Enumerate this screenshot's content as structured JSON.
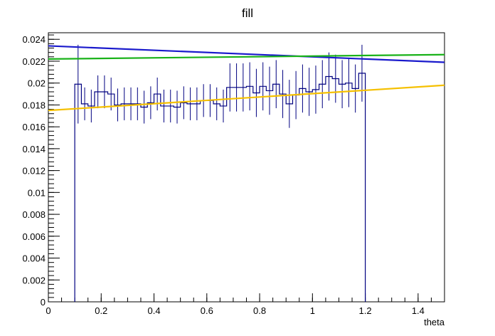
{
  "chart_data": {
    "type": "line",
    "title": "fill",
    "xlabel": "theta",
    "ylabel": "",
    "xlim": [
      0,
      1.5
    ],
    "ylim": [
      0,
      0.0246
    ],
    "x_ticks": [
      0,
      0.2,
      0.4,
      0.6,
      0.8,
      1,
      1.2,
      1.4
    ],
    "x_tick_labels": [
      "0",
      "0.2",
      "0.4",
      "0.6",
      "0.8",
      "1",
      "1.2",
      "1.4"
    ],
    "y_ticks": [
      0,
      0.002,
      0.004,
      0.006,
      0.008,
      0.01,
      0.012,
      0.014,
      0.016,
      0.018,
      0.02,
      0.022,
      0.024
    ],
    "y_tick_labels": [
      "0",
      "0.002",
      "0.004",
      "0.006",
      "0.008",
      "0.01",
      "0.012",
      "0.014",
      "0.016",
      "0.018",
      "0.02",
      "0.022",
      "0.024"
    ],
    "histogram": {
      "bin_width": 0.025,
      "first_edge": 0.1,
      "values": [
        0.0199,
        0.0181,
        0.0179,
        0.0192,
        0.0192,
        0.019,
        0.018,
        0.0181,
        0.0181,
        0.0181,
        0.0178,
        0.0182,
        0.019,
        0.0179,
        0.0179,
        0.0178,
        0.0182,
        0.0181,
        0.0181,
        0.0184,
        0.0184,
        0.0181,
        0.0179,
        0.0196,
        0.0196,
        0.0196,
        0.0197,
        0.0191,
        0.0197,
        0.0193,
        0.0199,
        0.019,
        0.0181,
        0.0189,
        0.0195,
        0.0192,
        0.0194,
        0.0199,
        0.0206,
        0.0204,
        0.0199,
        0.02,
        0.0195,
        0.0209
      ],
      "errors": [
        0.0036,
        0.0015,
        0.0015,
        0.0015,
        0.0015,
        0.0015,
        0.0015,
        0.0015,
        0.0015,
        0.0015,
        0.0015,
        0.0015,
        0.0015,
        0.0015,
        0.0015,
        0.0015,
        0.0015,
        0.0015,
        0.0015,
        0.0015,
        0.0015,
        0.0015,
        0.0015,
        0.0022,
        0.0022,
        0.0022,
        0.0022,
        0.0022,
        0.0022,
        0.0022,
        0.0022,
        0.0022,
        0.0022,
        0.0022,
        0.0022,
        0.0022,
        0.0022,
        0.0022,
        0.0022,
        0.0022,
        0.0022,
        0.0022,
        0.0022,
        0.0026
      ],
      "color": "#000080"
    },
    "series": [
      {
        "x": [
          0,
          1.5
        ],
        "values": [
          0.0234,
          0.0219
        ],
        "color": "#1a1acc"
      },
      {
        "x": [
          0,
          1.5
        ],
        "values": [
          0.0222,
          0.0226
        ],
        "color": "#19b219"
      },
      {
        "x": [
          0,
          1.5
        ],
        "values": [
          0.0175,
          0.0198
        ],
        "color": "#f5c000"
      }
    ],
    "grid": false,
    "legend": "none"
  }
}
